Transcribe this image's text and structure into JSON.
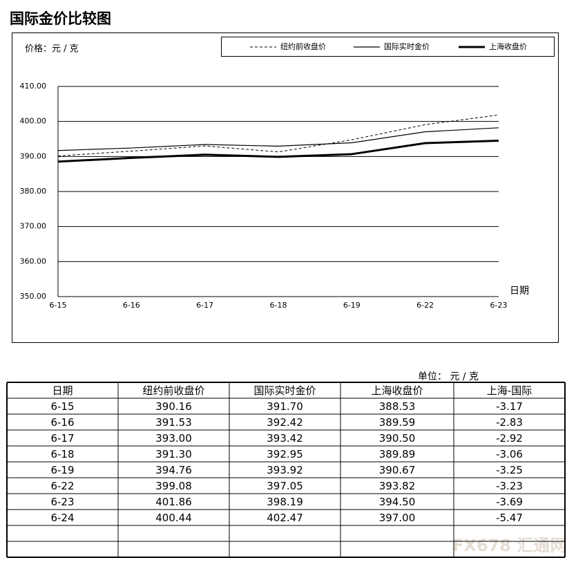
{
  "chart_data": {
    "type": "line",
    "title": "国际金价比较图",
    "y_label": "价格：元 / 克",
    "x_label": "日期",
    "categories": [
      "6-15",
      "6-16",
      "6-17",
      "6-18",
      "6-19",
      "6-22",
      "6-23"
    ],
    "series": [
      {
        "name": "纽约前收盘价",
        "color": "#000000",
        "line_style": "dashed",
        "line_width": 1,
        "values": [
          390.16,
          391.53,
          393.0,
          391.3,
          394.76,
          399.08,
          401.86
        ]
      },
      {
        "name": "国际实时金价",
        "color": "#000000",
        "line_style": "solid",
        "line_width": 1.2,
        "values": [
          391.7,
          392.42,
          393.42,
          392.95,
          393.92,
          397.05,
          398.19
        ]
      },
      {
        "name": "上海收盘价",
        "color": "#000000",
        "line_style": "solid",
        "line_width": 3,
        "values": [
          388.53,
          389.59,
          390.5,
          389.89,
          390.67,
          393.82,
          394.5
        ]
      }
    ],
    "ylim": [
      350,
      410
    ],
    "yticks": [
      {
        "value": 350,
        "label": "350.00"
      },
      {
        "value": 360,
        "label": "360.00"
      },
      {
        "value": 370,
        "label": "370.00"
      },
      {
        "value": 380,
        "label": "380.00"
      },
      {
        "value": 390,
        "label": "390.00"
      },
      {
        "value": 400,
        "label": "400.00"
      },
      {
        "value": 410,
        "label": "410.00"
      }
    ],
    "grid": true,
    "legend": "top-right"
  },
  "table": {
    "unit": "单位：  元 / 克",
    "header": [
      "日期",
      "纽约前收盘价",
      "国际实时金价",
      "上海收盘价",
      "上海-国际"
    ],
    "rows": [
      [
        "6-15",
        "390.16",
        "391.70",
        "388.53",
        "-3.17"
      ],
      [
        "6-16",
        "391.53",
        "392.42",
        "389.59",
        "-2.83"
      ],
      [
        "6-17",
        "393.00",
        "393.42",
        "390.50",
        "-2.92"
      ],
      [
        "6-18",
        "391.30",
        "392.95",
        "389.89",
        "-3.06"
      ],
      [
        "6-19",
        "394.76",
        "393.92",
        "390.67",
        "-3.25"
      ],
      [
        "6-22",
        "399.08",
        "397.05",
        "393.82",
        "-3.23"
      ],
      [
        "6-23",
        "401.86",
        "398.19",
        "394.50",
        "-3.69"
      ],
      [
        "6-24",
        "400.44",
        "402.47",
        "397.00",
        "-5.47"
      ]
    ]
  },
  "watermark": "FX678 汇通网"
}
